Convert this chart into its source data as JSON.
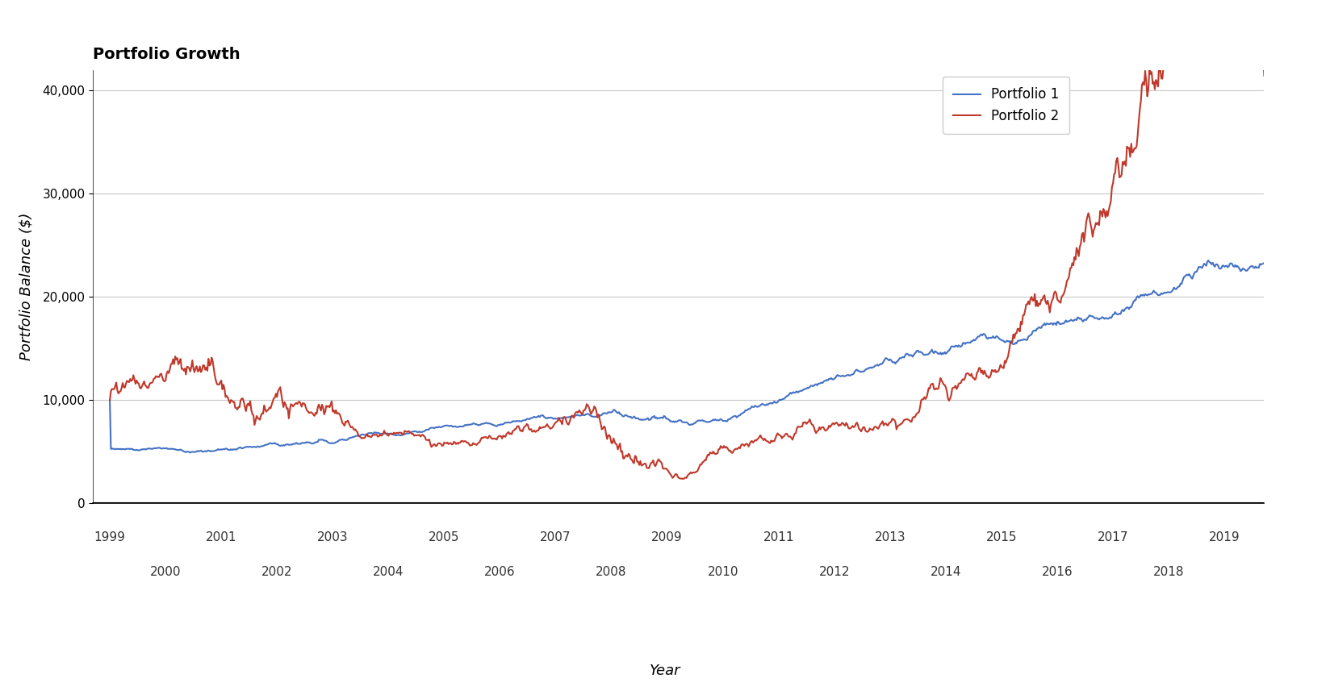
{
  "title": "Portfolio Growth",
  "xlabel": "Year",
  "ylabel": "Portfolio Balance ($)",
  "portfolio1_color": "#4472C4",
  "portfolio2_color": "#C0392B",
  "portfolio1_label": "Portfolio 1",
  "portfolio2_label": "Portfolio 2",
  "ylim": [
    0,
    42000
  ],
  "xlim": [
    1998.7,
    2019.7
  ],
  "yticks": [
    0,
    10000,
    20000,
    30000,
    40000
  ],
  "ytick_labels": [
    "0",
    "10,000",
    "20,000",
    "30,000",
    "40,000"
  ],
  "odd_years": [
    1999,
    2001,
    2003,
    2005,
    2007,
    2009,
    2011,
    2013,
    2015,
    2017,
    2019
  ],
  "even_years": [
    2000,
    2002,
    2004,
    2006,
    2008,
    2010,
    2012,
    2014,
    2016,
    2018
  ],
  "background_color": "#ffffff",
  "grid_color": "#c8c8c8",
  "title_fontsize": 14,
  "axis_label_fontsize": 13,
  "tick_fontsize": 11,
  "legend_fontsize": 12,
  "line_width": 1.5
}
